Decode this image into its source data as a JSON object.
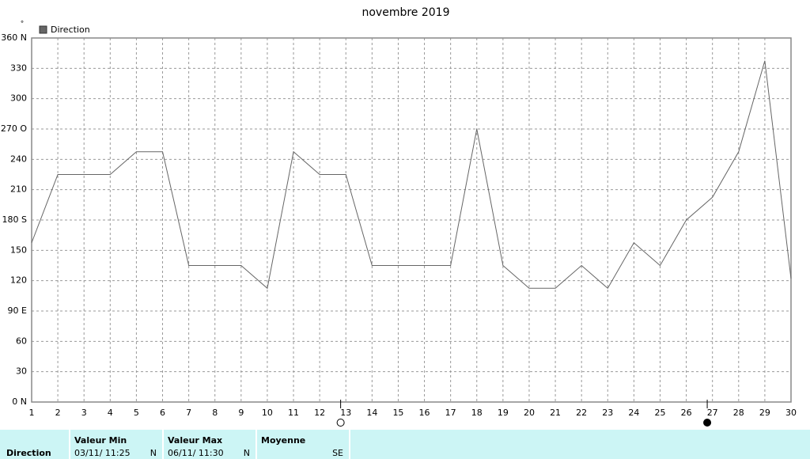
{
  "chart_data": {
    "type": "line",
    "title": "novembre 2019",
    "y_unit": "°",
    "x": [
      1,
      2,
      3,
      4,
      5,
      6,
      7,
      8,
      9,
      10,
      11,
      12,
      13,
      14,
      15,
      16,
      17,
      18,
      19,
      20,
      21,
      22,
      23,
      24,
      25,
      26,
      27,
      28,
      29,
      30
    ],
    "series": [
      {
        "name": "Direction",
        "color": "#666666",
        "values": [
          157.5,
          225,
          225,
          225,
          247.5,
          247.5,
          135,
          135,
          135,
          112.5,
          247.5,
          225,
          225,
          135,
          135,
          135,
          135,
          270,
          135,
          112.5,
          112.5,
          135,
          112.5,
          157.5,
          135,
          180,
          202.5,
          247.5,
          337.5,
          122
        ]
      }
    ],
    "xlim": [
      1,
      30
    ],
    "xticks": [
      1,
      2,
      3,
      4,
      5,
      6,
      7,
      8,
      9,
      10,
      11,
      12,
      13,
      14,
      15,
      16,
      17,
      18,
      19,
      20,
      21,
      22,
      23,
      24,
      25,
      26,
      27,
      28,
      29,
      30
    ],
    "ylim": [
      0,
      360
    ],
    "yticks": [
      {
        "value": 360,
        "label": "360 N"
      },
      330,
      300,
      {
        "value": 270,
        "label": "270 O"
      },
      240,
      210,
      {
        "value": 180,
        "label": "180 S"
      },
      150,
      120,
      {
        "value": 90,
        "label": "90 E"
      },
      60,
      30,
      {
        "value": 0,
        "label": "0 N"
      }
    ],
    "grid": true,
    "moon_markers": [
      {
        "x": 12.8,
        "fill": "#ffffff"
      },
      {
        "x": 26.8,
        "fill": "#000000"
      }
    ]
  },
  "stats_table": {
    "row_label": "Direction",
    "columns": [
      {
        "header": "Valeur Min",
        "value": "03/11/ 11:25",
        "direction": "N"
      },
      {
        "header": "Valeur Max",
        "value": "06/11/ 11:30",
        "direction": "N"
      },
      {
        "header": "Moyenne",
        "value": "",
        "direction": "SE"
      }
    ]
  }
}
